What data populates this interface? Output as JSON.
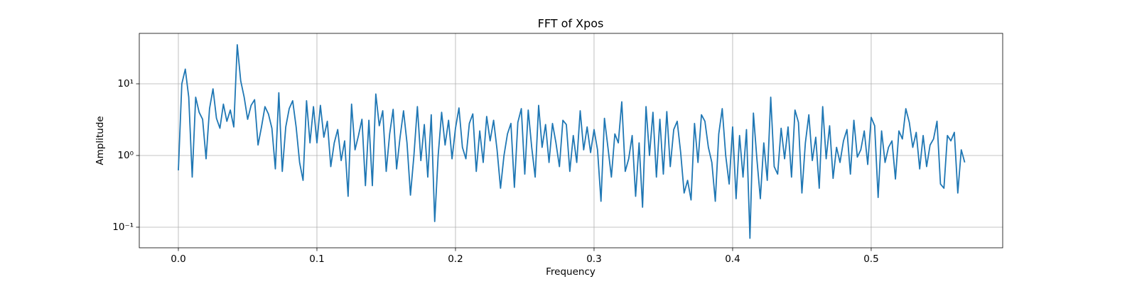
{
  "chart_data": {
    "type": "line",
    "title": "FFT of Xpos",
    "x_label": "Frequency",
    "y_label": "Amplitude",
    "color": "#1f77b4",
    "grid": true,
    "y_scale": "log",
    "xlim": [
      -0.0282,
      0.5949
    ],
    "ylim": [
      0.0516,
      50.5
    ],
    "xticks": [
      {
        "value": 0,
        "label": "0.0"
      },
      0.1,
      0.2,
      0.3,
      0.4,
      0.5
    ],
    "yticks": [
      {
        "value": 0.1,
        "label": "10⁻¹"
      },
      {
        "value": 1,
        "label": "10⁰"
      },
      {
        "value": 10,
        "label": "10¹"
      }
    ],
    "x": [
      0,
      0.0025,
      0.005,
      0.0075,
      0.01,
      0.0125,
      0.015,
      0.0175,
      0.02,
      0.0225,
      0.025,
      0.0275,
      0.03,
      0.0325,
      0.035,
      0.0375,
      0.04,
      0.0425,
      0.045,
      0.0475,
      0.05,
      0.0525,
      0.055,
      0.0575,
      0.06,
      0.0625,
      0.065,
      0.0675,
      0.07,
      0.0725,
      0.075,
      0.0775,
      0.08,
      0.0825,
      0.085,
      0.0875,
      0.09,
      0.0925,
      0.095,
      0.0975,
      0.1,
      0.1025,
      0.105,
      0.1075,
      0.11,
      0.1125,
      0.115,
      0.1175,
      0.12,
      0.1225,
      0.125,
      0.1275,
      0.13,
      0.1325,
      0.135,
      0.1375,
      0.14,
      0.1425,
      0.145,
      0.1475,
      0.15,
      0.1525,
      0.155,
      0.1575,
      0.16,
      0.1625,
      0.165,
      0.1675,
      0.17,
      0.1725,
      0.175,
      0.1775,
      0.18,
      0.1825,
      0.185,
      0.1875,
      0.19,
      0.1925,
      0.195,
      0.1975,
      0.2,
      0.2025,
      0.205,
      0.2075,
      0.21,
      0.2125,
      0.215,
      0.2175,
      0.22,
      0.2225,
      0.225,
      0.2275,
      0.23,
      0.2325,
      0.235,
      0.2375,
      0.24,
      0.2425,
      0.245,
      0.2475,
      0.25,
      0.2525,
      0.255,
      0.2575,
      0.26,
      0.2625,
      0.265,
      0.2675,
      0.27,
      0.2725,
      0.275,
      0.2775,
      0.28,
      0.2825,
      0.285,
      0.2875,
      0.29,
      0.2925,
      0.295,
      0.2975,
      0.3,
      0.3025,
      0.305,
      0.3075,
      0.31,
      0.3125,
      0.315,
      0.3175,
      0.32,
      0.3225,
      0.325,
      0.3275,
      0.33,
      0.3325,
      0.335,
      0.3375,
      0.34,
      0.3425,
      0.345,
      0.3475,
      0.35,
      0.3525,
      0.355,
      0.3575,
      0.36,
      0.3625,
      0.365,
      0.3675,
      0.37,
      0.3725,
      0.375,
      0.3775,
      0.38,
      0.3825,
      0.385,
      0.3875,
      0.39,
      0.3925,
      0.395,
      0.3975,
      0.4,
      0.4025,
      0.405,
      0.4075,
      0.41,
      0.4125,
      0.415,
      0.4175,
      0.42,
      0.4225,
      0.425,
      0.4275,
      0.43,
      0.4325,
      0.435,
      0.4375,
      0.44,
      0.4425,
      0.445,
      0.4475,
      0.45,
      0.4525,
      0.455,
      0.4575,
      0.46,
      0.4625,
      0.465,
      0.4675,
      0.47,
      0.4725,
      0.475,
      0.4775,
      0.48,
      0.4825,
      0.485,
      0.4875,
      0.49,
      0.4925,
      0.495,
      0.4975,
      0.5,
      0.5025,
      0.505,
      0.5075,
      0.51,
      0.5125,
      0.515,
      0.5175,
      0.52,
      0.5225,
      0.525,
      0.5275,
      0.53,
      0.5325,
      0.535,
      0.5375,
      0.54,
      0.5425,
      0.545,
      0.5475,
      0.55,
      0.5525,
      0.555,
      0.5575,
      0.56,
      0.5625,
      0.565,
      0.5675
    ],
    "values": [
      0.62,
      10,
      16,
      6.5,
      0.5,
      6.5,
      4,
      3.2,
      0.9,
      4.5,
      8.5,
      3.3,
      2.4,
      5.2,
      3.0,
      4.3,
      2.5,
      35,
      11,
      6.5,
      3.2,
      5.0,
      6.0,
      1.4,
      2.5,
      4.8,
      3.8,
      2.4,
      0.65,
      7.5,
      0.6,
      2.5,
      4.5,
      5.8,
      2.5,
      0.8,
      0.45,
      5.8,
      1.5,
      4.8,
      1.5,
      5.0,
      1.8,
      3.0,
      0.7,
      1.5,
      2.3,
      0.85,
      1.6,
      0.27,
      5.2,
      1.2,
      1.9,
      3.2,
      0.38,
      3.1,
      0.38,
      7.2,
      2.6,
      4.2,
      0.6,
      2.0,
      4.4,
      0.65,
      1.8,
      4.2,
      1.5,
      0.28,
      1.0,
      4.8,
      0.85,
      2.7,
      0.5,
      3.7,
      0.12,
      1.0,
      4.0,
      1.4,
      3.1,
      0.9,
      2.4,
      4.6,
      1.3,
      0.9,
      2.8,
      3.8,
      0.6,
      2.2,
      0.8,
      3.5,
      1.6,
      3.1,
      1.2,
      0.35,
      1.0,
      2.0,
      2.8,
      0.36,
      2.9,
      4.5,
      0.55,
      4.3,
      1.3,
      0.5,
      5.0,
      1.3,
      2.7,
      0.8,
      2.8,
      1.5,
      0.7,
      3.1,
      2.7,
      0.6,
      1.9,
      0.8,
      4.2,
      1.2,
      2.5,
      1.1,
      2.3,
      1.2,
      0.23,
      3.3,
      1.3,
      0.5,
      2.0,
      1.5,
      5.6,
      0.6,
      0.9,
      1.9,
      0.27,
      1.5,
      0.19,
      4.8,
      1.0,
      4.0,
      0.5,
      3.2,
      0.55,
      4.1,
      0.7,
      2.3,
      3.0,
      1.1,
      0.3,
      0.45,
      0.24,
      2.8,
      0.8,
      3.7,
      3.0,
      1.3,
      0.8,
      0.23,
      2.0,
      4.5,
      1.0,
      0.4,
      2.5,
      0.25,
      1.9,
      0.5,
      2.3,
      0.07,
      3.9,
      0.9,
      0.25,
      1.5,
      0.45,
      6.5,
      0.7,
      0.55,
      2.4,
      0.9,
      2.5,
      0.5,
      4.3,
      2.9,
      0.3,
      1.5,
      3.7,
      0.85,
      1.8,
      0.35,
      4.8,
      0.9,
      2.6,
      0.48,
      1.3,
      0.8,
      1.6,
      2.3,
      0.55,
      3.1,
      0.95,
      1.2,
      2.2,
      0.75,
      3.4,
      2.6,
      0.26,
      2.2,
      0.8,
      1.3,
      1.6,
      0.47,
      2.2,
      1.7,
      4.5,
      2.9,
      1.3,
      2.1,
      0.65,
      1.9,
      0.7,
      1.4,
      1.7,
      3.0,
      0.4,
      0.35,
      1.9,
      1.6,
      2.1,
      0.3,
      1.2,
      0.8
    ]
  }
}
